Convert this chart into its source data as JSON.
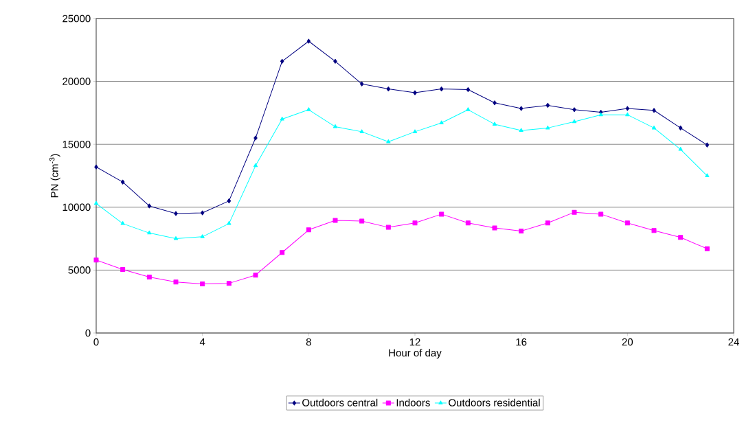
{
  "chart_data": {
    "type": "line",
    "xlabel": "Hour of day",
    "ylabel": "PN (cm$^{-3}$)",
    "x": [
      0,
      1,
      2,
      3,
      4,
      5,
      6,
      7,
      8,
      9,
      10,
      11,
      12,
      13,
      14,
      15,
      16,
      17,
      18,
      19,
      20,
      21,
      22,
      23
    ],
    "series": [
      {
        "name": "Outdoors central",
        "color": "#000080",
        "marker": "diamond",
        "values": [
          13200,
          12000,
          10100,
          9500,
          9550,
          10500,
          15500,
          21600,
          23200,
          21600,
          19800,
          19400,
          19100,
          19400,
          19350,
          18300,
          17850,
          18100,
          17750,
          17550,
          17850,
          17700,
          16300,
          14950
        ]
      },
      {
        "name": "Indoors",
        "color": "#ff00ff",
        "marker": "square",
        "values": [
          5800,
          5050,
          4450,
          4050,
          3900,
          3950,
          4600,
          6400,
          8200,
          8950,
          8900,
          8400,
          8750,
          9450,
          8750,
          8350,
          8100,
          8750,
          9600,
          9450,
          8750,
          8150,
          7600,
          6700
        ]
      },
      {
        "name": "Outdoors residential",
        "color": "#00ffff",
        "marker": "triangle",
        "values": [
          10300,
          8700,
          7950,
          7500,
          7650,
          8700,
          13300,
          17000,
          17750,
          16400,
          16000,
          15200,
          16000,
          16700,
          17750,
          16600,
          16100,
          16300,
          16800,
          17350,
          17350,
          16300,
          14600,
          12500
        ]
      }
    ],
    "xlim": [
      0,
      24
    ],
    "xticks": [
      0,
      4,
      8,
      12,
      16,
      20,
      24
    ],
    "ylim": [
      0,
      25000
    ],
    "yticks": [
      0,
      5000,
      10000,
      15000,
      20000,
      25000
    ],
    "grid": "y",
    "legend": "bottom",
    "line_style": "solid"
  }
}
